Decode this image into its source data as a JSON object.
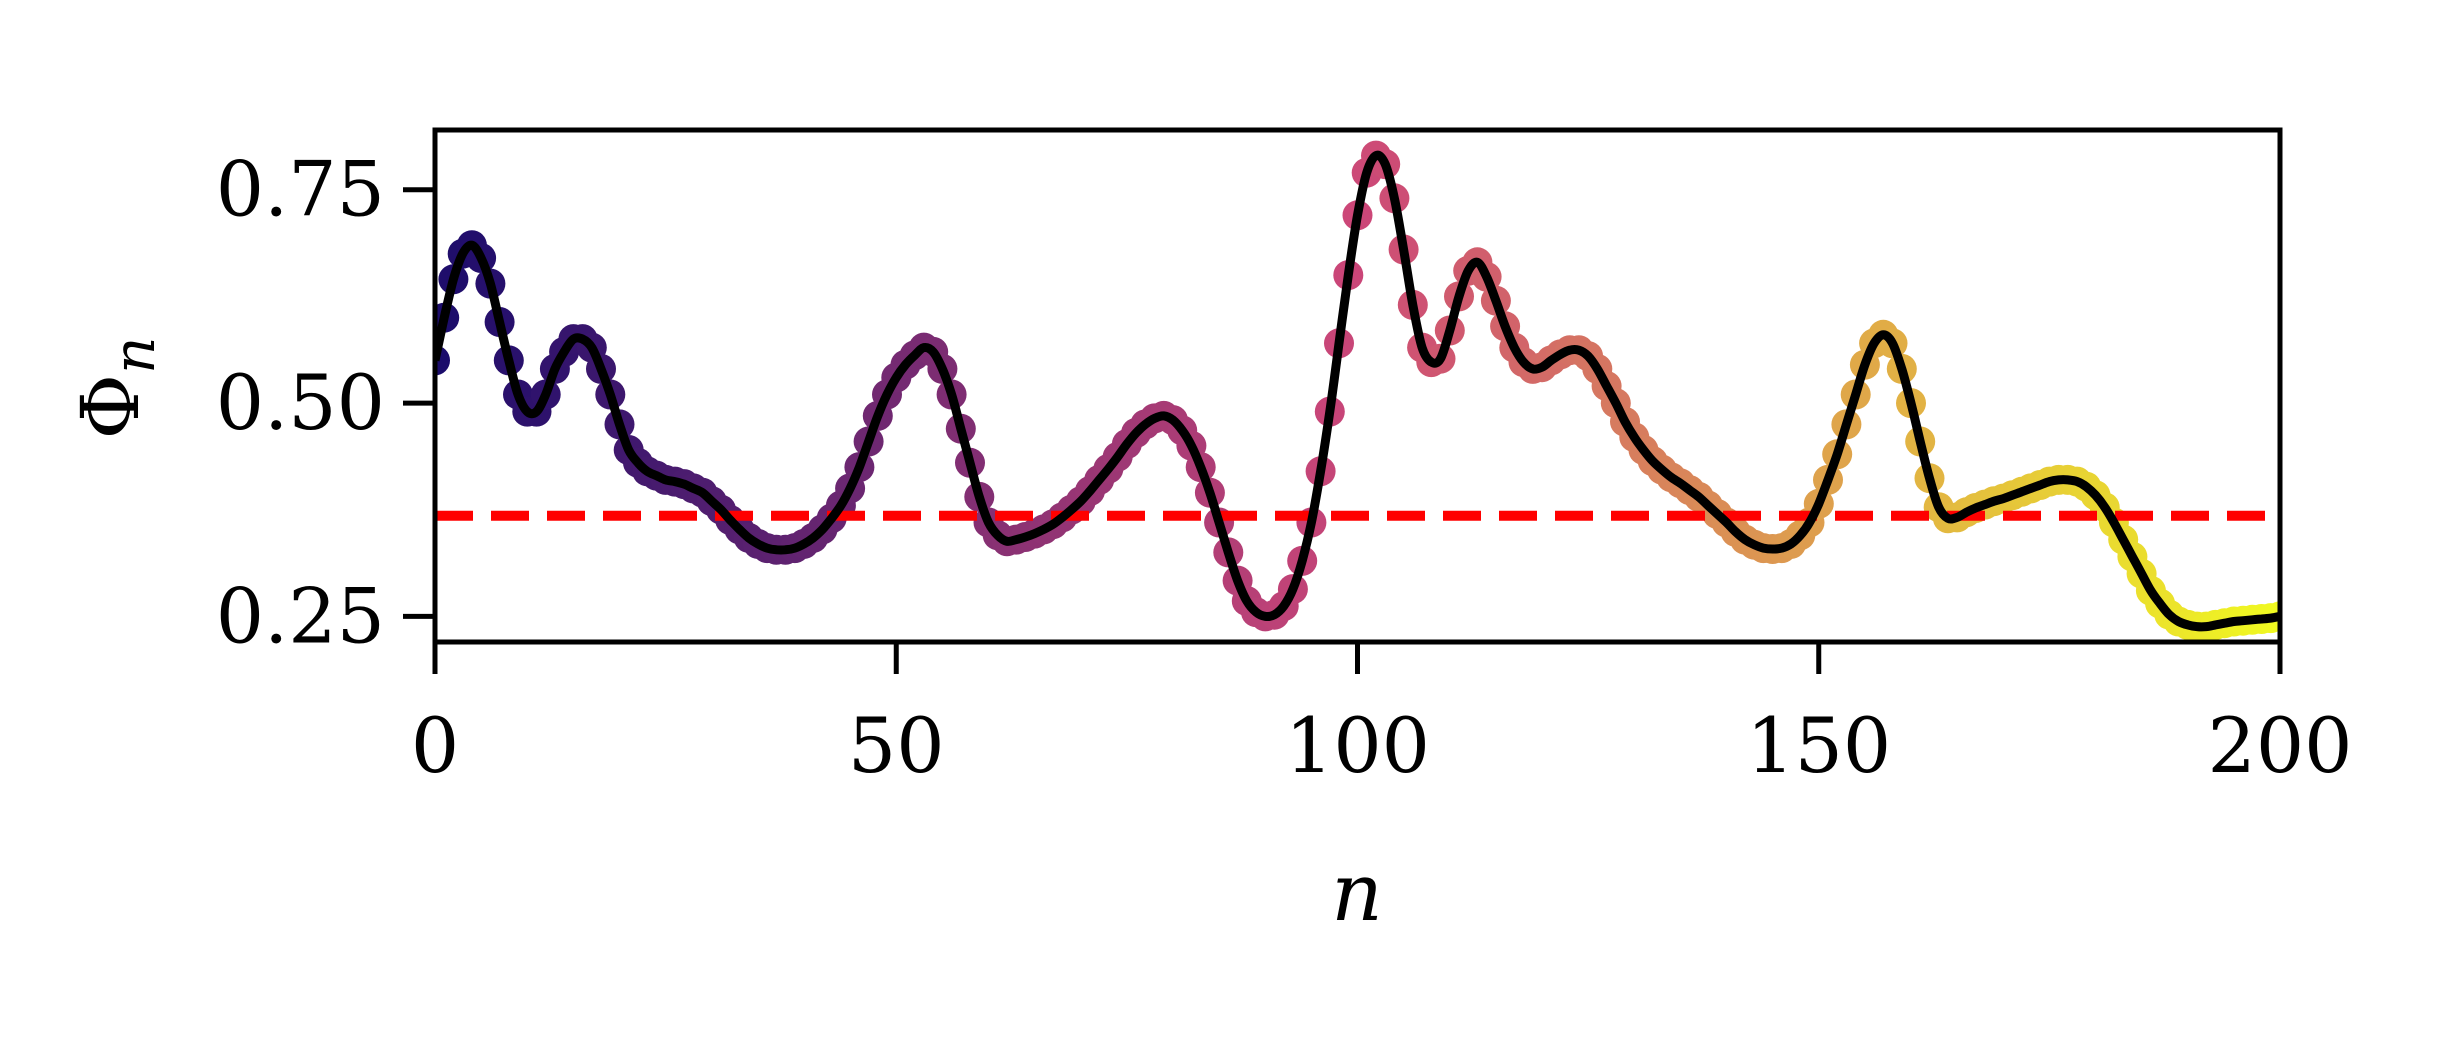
{
  "chart_data": {
    "type": "line",
    "xlabel": "n",
    "ylabel": "Φ",
    "ylabel_subscript": "n",
    "xlim": [
      0,
      200
    ],
    "ylim": [
      0.22,
      0.82
    ],
    "xticks": [
      0,
      50,
      100,
      150,
      200
    ],
    "xtick_labels": [
      "0",
      "50",
      "100",
      "150",
      "200"
    ],
    "yticks": [
      0.25,
      0.5,
      0.75
    ],
    "ytick_labels": [
      "0.25",
      "0.50",
      "0.75"
    ],
    "grid": false,
    "colors": {
      "line": "#000000",
      "reference": "#ff0000",
      "points_start": "#1b0c6b",
      "points_mid": "#cc4778",
      "points_end": "#f0f921"
    },
    "reference_line": {
      "y": 0.368,
      "style": "dashed"
    },
    "series": [
      {
        "points_x": [
          0,
          1,
          2,
          3,
          4,
          5,
          6,
          7,
          8,
          9,
          10,
          11,
          12,
          13,
          14,
          15,
          16,
          17,
          18,
          19,
          20,
          21,
          22,
          23,
          24,
          25,
          26,
          27,
          28,
          29,
          30,
          31,
          32,
          33,
          34,
          35,
          36,
          37,
          38,
          39,
          40,
          41,
          42,
          43,
          44,
          45,
          46,
          47,
          48,
          49,
          50,
          51,
          52,
          53,
          54,
          55,
          56,
          57,
          58,
          59,
          60,
          61,
          62,
          63,
          64,
          65,
          66,
          67,
          68,
          69,
          70,
          71,
          72,
          73,
          74,
          75,
          76,
          77,
          78,
          79,
          80,
          81,
          82,
          83,
          84,
          85,
          86,
          87,
          88,
          89,
          90,
          91,
          92,
          93,
          94,
          95,
          96,
          97,
          98,
          99,
          100,
          101,
          102,
          103,
          104,
          105,
          106,
          107,
          108,
          109,
          110,
          111,
          112,
          113,
          114,
          115,
          116,
          117,
          118,
          119,
          120,
          121,
          122,
          123,
          124,
          125,
          126,
          127,
          128,
          129,
          130,
          131,
          132,
          133,
          134,
          135,
          136,
          137,
          138,
          139,
          140,
          141,
          142,
          143,
          144,
          145,
          146,
          147,
          148,
          149,
          150,
          151,
          152,
          153,
          154,
          155,
          156,
          157,
          158,
          159,
          160,
          161,
          162,
          163,
          164,
          165,
          166,
          167,
          168,
          169,
          170,
          171,
          172,
          173,
          174,
          175,
          176,
          177,
          178,
          179,
          180,
          181,
          182,
          183,
          184,
          185,
          186,
          187,
          188,
          189,
          190,
          191,
          192,
          193,
          194,
          195,
          196,
          197,
          198,
          199,
          200
        ],
        "points_y": [
          0.55,
          0.6,
          0.645,
          0.675,
          0.685,
          0.67,
          0.64,
          0.595,
          0.55,
          0.51,
          0.49,
          0.49,
          0.51,
          0.54,
          0.56,
          0.575,
          0.575,
          0.565,
          0.54,
          0.51,
          0.475,
          0.445,
          0.43,
          0.42,
          0.415,
          0.41,
          0.408,
          0.405,
          0.4,
          0.395,
          0.385,
          0.375,
          0.363,
          0.352,
          0.342,
          0.335,
          0.33,
          0.328,
          0.328,
          0.33,
          0.335,
          0.342,
          0.352,
          0.365,
          0.38,
          0.4,
          0.425,
          0.455,
          0.485,
          0.51,
          0.53,
          0.545,
          0.556,
          0.565,
          0.56,
          0.54,
          0.51,
          0.47,
          0.43,
          0.39,
          0.36,
          0.345,
          0.338,
          0.34,
          0.343,
          0.347,
          0.352,
          0.358,
          0.366,
          0.375,
          0.385,
          0.397,
          0.41,
          0.423,
          0.437,
          0.452,
          0.465,
          0.475,
          0.482,
          0.485,
          0.48,
          0.468,
          0.45,
          0.425,
          0.395,
          0.36,
          0.325,
          0.292,
          0.268,
          0.255,
          0.25,
          0.252,
          0.262,
          0.282,
          0.315,
          0.36,
          0.42,
          0.49,
          0.57,
          0.65,
          0.72,
          0.77,
          0.79,
          0.78,
          0.74,
          0.68,
          0.615,
          0.565,
          0.548,
          0.552,
          0.585,
          0.625,
          0.655,
          0.665,
          0.648,
          0.62,
          0.59,
          0.565,
          0.548,
          0.54,
          0.542,
          0.55,
          0.557,
          0.562,
          0.562,
          0.555,
          0.54,
          0.52,
          0.5,
          0.478,
          0.46,
          0.445,
          0.432,
          0.422,
          0.413,
          0.406,
          0.398,
          0.39,
          0.38,
          0.37,
          0.36,
          0.349,
          0.34,
          0.334,
          0.33,
          0.329,
          0.33,
          0.335,
          0.345,
          0.36,
          0.382,
          0.41,
          0.44,
          0.475,
          0.51,
          0.545,
          0.57,
          0.58,
          0.57,
          0.54,
          0.5,
          0.455,
          0.412,
          0.378,
          0.365,
          0.366,
          0.372,
          0.377,
          0.381,
          0.385,
          0.388,
          0.392,
          0.396,
          0.4,
          0.404,
          0.408,
          0.41,
          0.41,
          0.408,
          0.402,
          0.392,
          0.378,
          0.36,
          0.34,
          0.32,
          0.3,
          0.28,
          0.265,
          0.252,
          0.244,
          0.24,
          0.238,
          0.238,
          0.24,
          0.242,
          0.244,
          0.245,
          0.246,
          0.247,
          0.248,
          0.25,
          0.252
        ]
      }
    ]
  }
}
